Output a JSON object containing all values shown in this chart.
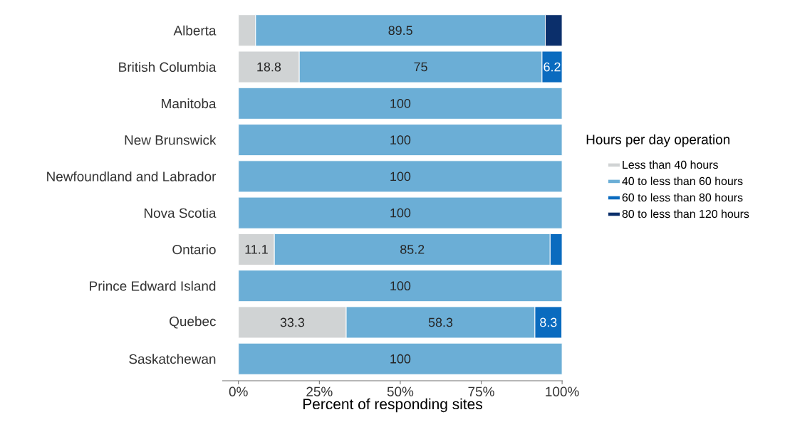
{
  "chart_data": {
    "type": "bar",
    "orientation": "horizontal",
    "stacked": true,
    "categories": [
      "Alberta",
      "British Columbia",
      "Manitoba",
      "New Brunswick",
      "Newfoundland and Labrador",
      "Nova Scotia",
      "Ontario",
      "Prince Edward Island",
      "Quebec",
      "Saskatchewan"
    ],
    "series": [
      {
        "name": "Less than 40 hours",
        "color": "#d0d3d4",
        "values": [
          5.3,
          18.8,
          null,
          null,
          null,
          null,
          11.1,
          null,
          33.3,
          null
        ],
        "value_labels": [
          null,
          "18.8",
          null,
          null,
          null,
          null,
          "11.1",
          null,
          "33.3",
          null
        ]
      },
      {
        "name": "40 to less than 60 hours",
        "color": "#6baed6",
        "values": [
          89.5,
          75,
          100,
          100,
          100,
          100,
          85.2,
          100,
          58.3,
          100
        ],
        "value_labels": [
          "89.5",
          "75",
          "100",
          "100",
          "100",
          "100",
          "85.2",
          "100",
          "58.3",
          "100"
        ]
      },
      {
        "name": "60 to less than 80 hours",
        "color": "#0a6bbf",
        "values": [
          null,
          6.2,
          null,
          null,
          null,
          null,
          3.7,
          null,
          8.3,
          null
        ],
        "value_labels": [
          null,
          "6.2",
          null,
          null,
          null,
          null,
          null,
          null,
          "8.3",
          null
        ]
      },
      {
        "name": "80 to less than 120 hours",
        "color": "#0b2f6b",
        "values": [
          5.2,
          null,
          null,
          null,
          null,
          null,
          null,
          null,
          null,
          null
        ],
        "value_labels": [
          null,
          null,
          null,
          null,
          null,
          null,
          null,
          null,
          null,
          null
        ]
      }
    ],
    "xlim": [
      -5,
      100.2
    ],
    "xticks": [
      {
        "value": 0,
        "label": "0%"
      },
      {
        "value": 25,
        "label": "25%"
      },
      {
        "value": 50,
        "label": "50%"
      },
      {
        "value": 75,
        "label": "75%"
      },
      {
        "value": 100,
        "label": "100%"
      }
    ],
    "xlabel": "Percent of responding sites",
    "legend_title": "Hours per day operation",
    "legend": "right",
    "grid": false
  }
}
